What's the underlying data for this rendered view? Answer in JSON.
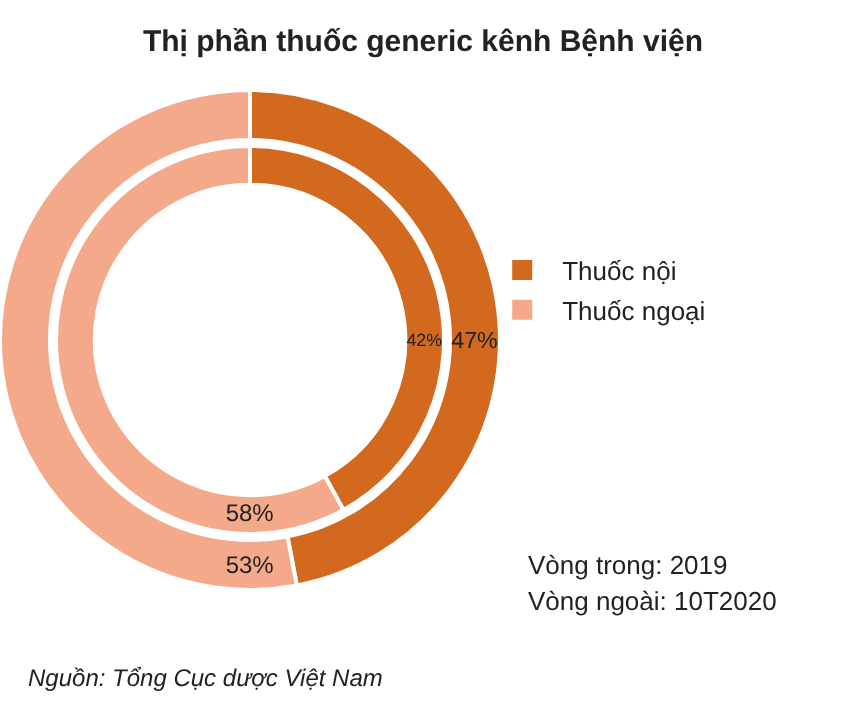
{
  "chart_data": {
    "type": "donut",
    "title": "Thị phần thuốc generic kênh Bệnh viện",
    "categories": [
      "Thuốc nội",
      "Thuốc ngoại"
    ],
    "colors": [
      "#d2691f",
      "#f4aa8a"
    ],
    "series": [
      {
        "values": [
          47,
          53
        ],
        "value_labels": [
          "47%",
          "53%"
        ]
      },
      {
        "values": [
          42,
          58
        ],
        "value_labels": [
          "42%",
          "58%"
        ]
      }
    ],
    "legend": "right",
    "annotations": [
      "Vòng trong: 2019",
      "Vòng ngoài: 10T2020",
      "Nguồn: Tổng Cục dược Việt Nam"
    ]
  }
}
